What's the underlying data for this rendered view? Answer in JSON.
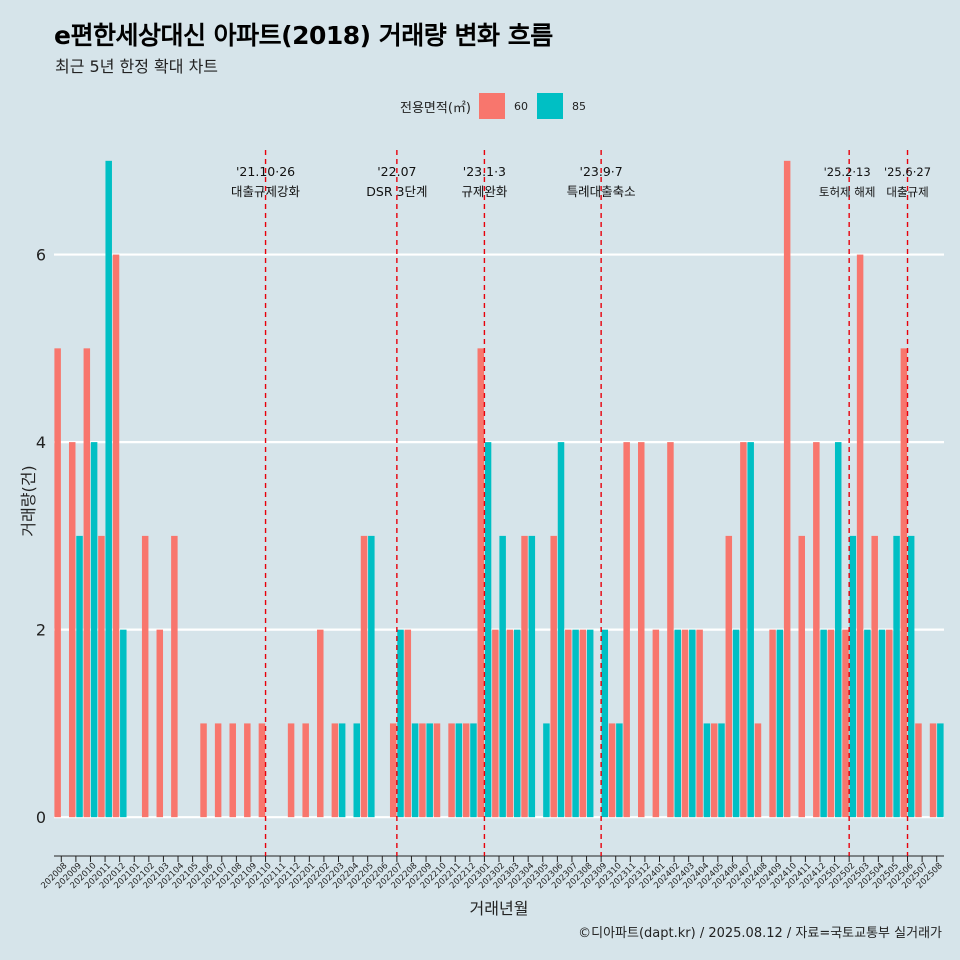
{
  "title": "e편한세상대신 아파트(2018) 거래량 변화 흐름",
  "subtitle": "최근 5년 한정 확대 차트",
  "legend": {
    "title": "전용면적(㎡)",
    "items": [
      {
        "label": "60",
        "color": "#f8766d"
      },
      {
        "label": "85",
        "color": "#00bfc4"
      }
    ]
  },
  "caption": "©디아파트(dapt.kr) / 2025.08.12 / 자료=국토교통부 실거래가",
  "chart_data": {
    "type": "bar",
    "title": "e편한세상대신 아파트(2018) 거래량 변화 흐름",
    "subtitle": "최근 5년 한정 확대 차트",
    "xlabel": "거래년월",
    "ylabel": "거래량(건)",
    "ylim": [
      -0.35,
      7.35
    ],
    "yticks": [
      0,
      2,
      4,
      6
    ],
    "grid": true,
    "legend_position": "top",
    "categories": [
      "202008",
      "202009",
      "202010",
      "202011",
      "202012",
      "202101",
      "202102",
      "202103",
      "202104",
      "202105",
      "202106",
      "202107",
      "202108",
      "202109",
      "202110",
      "202111",
      "202112",
      "202201",
      "202202",
      "202203",
      "202204",
      "202205",
      "202206",
      "202207",
      "202208",
      "202209",
      "202210",
      "202211",
      "202212",
      "202301",
      "202302",
      "202303",
      "202304",
      "202305",
      "202306",
      "202307",
      "202308",
      "202309",
      "202310",
      "202311",
      "202312",
      "202401",
      "202402",
      "202403",
      "202404",
      "202405",
      "202406",
      "202407",
      "202408",
      "202409",
      "202410",
      "202411",
      "202412",
      "202501",
      "202502",
      "202503",
      "202504",
      "202505",
      "202506",
      "202507",
      "202508"
    ],
    "series": [
      {
        "name": "60",
        "color": "#f8766d",
        "values": [
          5,
          4,
          5,
          3,
          6,
          0,
          3,
          2,
          3,
          0,
          1,
          1,
          1,
          1,
          1,
          0,
          1,
          1,
          2,
          1,
          0,
          3,
          0,
          1,
          2,
          1,
          1,
          1,
          1,
          5,
          2,
          2,
          3,
          0,
          3,
          2,
          2,
          0,
          1,
          4,
          4,
          2,
          4,
          2,
          2,
          1,
          3,
          4,
          1,
          2,
          7,
          3,
          4,
          2,
          2,
          6,
          3,
          2,
          5,
          1,
          1
        ]
      },
      {
        "name": "85",
        "color": "#00bfc4",
        "values": [
          0,
          3,
          4,
          7,
          2,
          0,
          0,
          0,
          0,
          0,
          0,
          0,
          0,
          0,
          0,
          0,
          0,
          0,
          0,
          1,
          1,
          3,
          0,
          2,
          1,
          1,
          0,
          1,
          1,
          4,
          3,
          2,
          3,
          1,
          4,
          2,
          2,
          2,
          1,
          0,
          0,
          0,
          2,
          2,
          1,
          1,
          2,
          4,
          0,
          2,
          0,
          0,
          2,
          4,
          3,
          2,
          2,
          3,
          3,
          0,
          1
        ]
      }
    ],
    "annotations": [
      {
        "category": "202110",
        "date": "'21.10·26",
        "label": "대출규제강화"
      },
      {
        "category": "202207",
        "date": "'22.07",
        "label": "DSR 3단계"
      },
      {
        "category": "202301",
        "date": "'23.1·3",
        "label": "규제완화"
      },
      {
        "category": "202309",
        "date": "'23.9·7",
        "label": "특례대출축소"
      },
      {
        "category": "202502",
        "date": "'25.2·13",
        "label": "토허제 해제"
      },
      {
        "category": "202506",
        "date": "'25.6·27",
        "label": "대출규제"
      }
    ]
  }
}
